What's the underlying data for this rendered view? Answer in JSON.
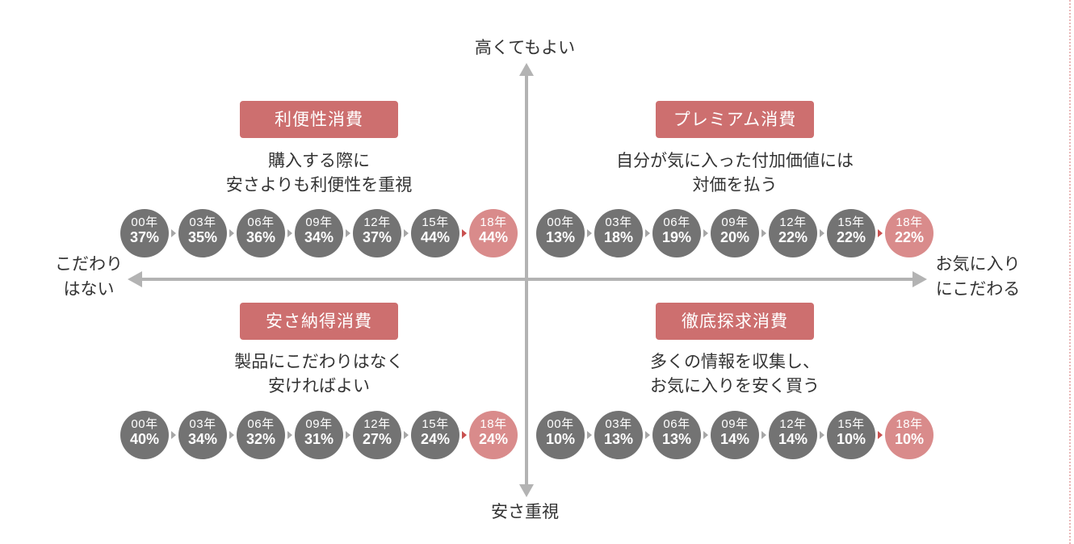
{
  "axes": {
    "top": "高くてもよい",
    "bottom": "安さ重視",
    "left_lines": [
      "こだわり",
      "はない"
    ],
    "right_lines": [
      "お気に入り",
      "にこだわる"
    ]
  },
  "colors": {
    "accent": "#cd6f6f",
    "node_gray": "#737373",
    "node_highlight": "#d98b8b",
    "axis": "#b3b3b3",
    "connector_gray": "#a6a6a6",
    "connector_highlight": "#c9504f"
  },
  "quadrants": [
    {
      "id": "convenience",
      "title": "利便性消費",
      "desc_lines": [
        "購入する際に",
        "安さよりも利便性を重視"
      ],
      "values": [
        {
          "year": "00年",
          "pct": "37%"
        },
        {
          "year": "03年",
          "pct": "35%"
        },
        {
          "year": "06年",
          "pct": "36%"
        },
        {
          "year": "09年",
          "pct": "34%"
        },
        {
          "year": "12年",
          "pct": "37%"
        },
        {
          "year": "15年",
          "pct": "44%"
        },
        {
          "year": "18年",
          "pct": "44%"
        }
      ]
    },
    {
      "id": "premium",
      "title": "プレミアム消費",
      "desc_lines": [
        "自分が気に入った付加価値には",
        "対価を払う"
      ],
      "values": [
        {
          "year": "00年",
          "pct": "13%"
        },
        {
          "year": "03年",
          "pct": "18%"
        },
        {
          "year": "06年",
          "pct": "19%"
        },
        {
          "year": "09年",
          "pct": "20%"
        },
        {
          "year": "12年",
          "pct": "22%"
        },
        {
          "year": "15年",
          "pct": "22%"
        },
        {
          "year": "18年",
          "pct": "22%"
        }
      ]
    },
    {
      "id": "cheap",
      "title": "安さ納得消費",
      "desc_lines": [
        "製品にこだわりはなく",
        "安ければよい"
      ],
      "values": [
        {
          "year": "00年",
          "pct": "40%"
        },
        {
          "year": "03年",
          "pct": "34%"
        },
        {
          "year": "06年",
          "pct": "32%"
        },
        {
          "year": "09年",
          "pct": "31%"
        },
        {
          "year": "12年",
          "pct": "27%"
        },
        {
          "year": "15年",
          "pct": "24%"
        },
        {
          "year": "18年",
          "pct": "24%"
        }
      ]
    },
    {
      "id": "thorough",
      "title": "徹底探求消費",
      "desc_lines": [
        "多くの情報を収集し、",
        "お気に入りを安く買う"
      ],
      "values": [
        {
          "year": "00年",
          "pct": "10%"
        },
        {
          "year": "03年",
          "pct": "13%"
        },
        {
          "year": "06年",
          "pct": "13%"
        },
        {
          "year": "09年",
          "pct": "14%"
        },
        {
          "year": "12年",
          "pct": "14%"
        },
        {
          "year": "15年",
          "pct": "10%"
        },
        {
          "year": "18年",
          "pct": "10%"
        }
      ]
    }
  ]
}
